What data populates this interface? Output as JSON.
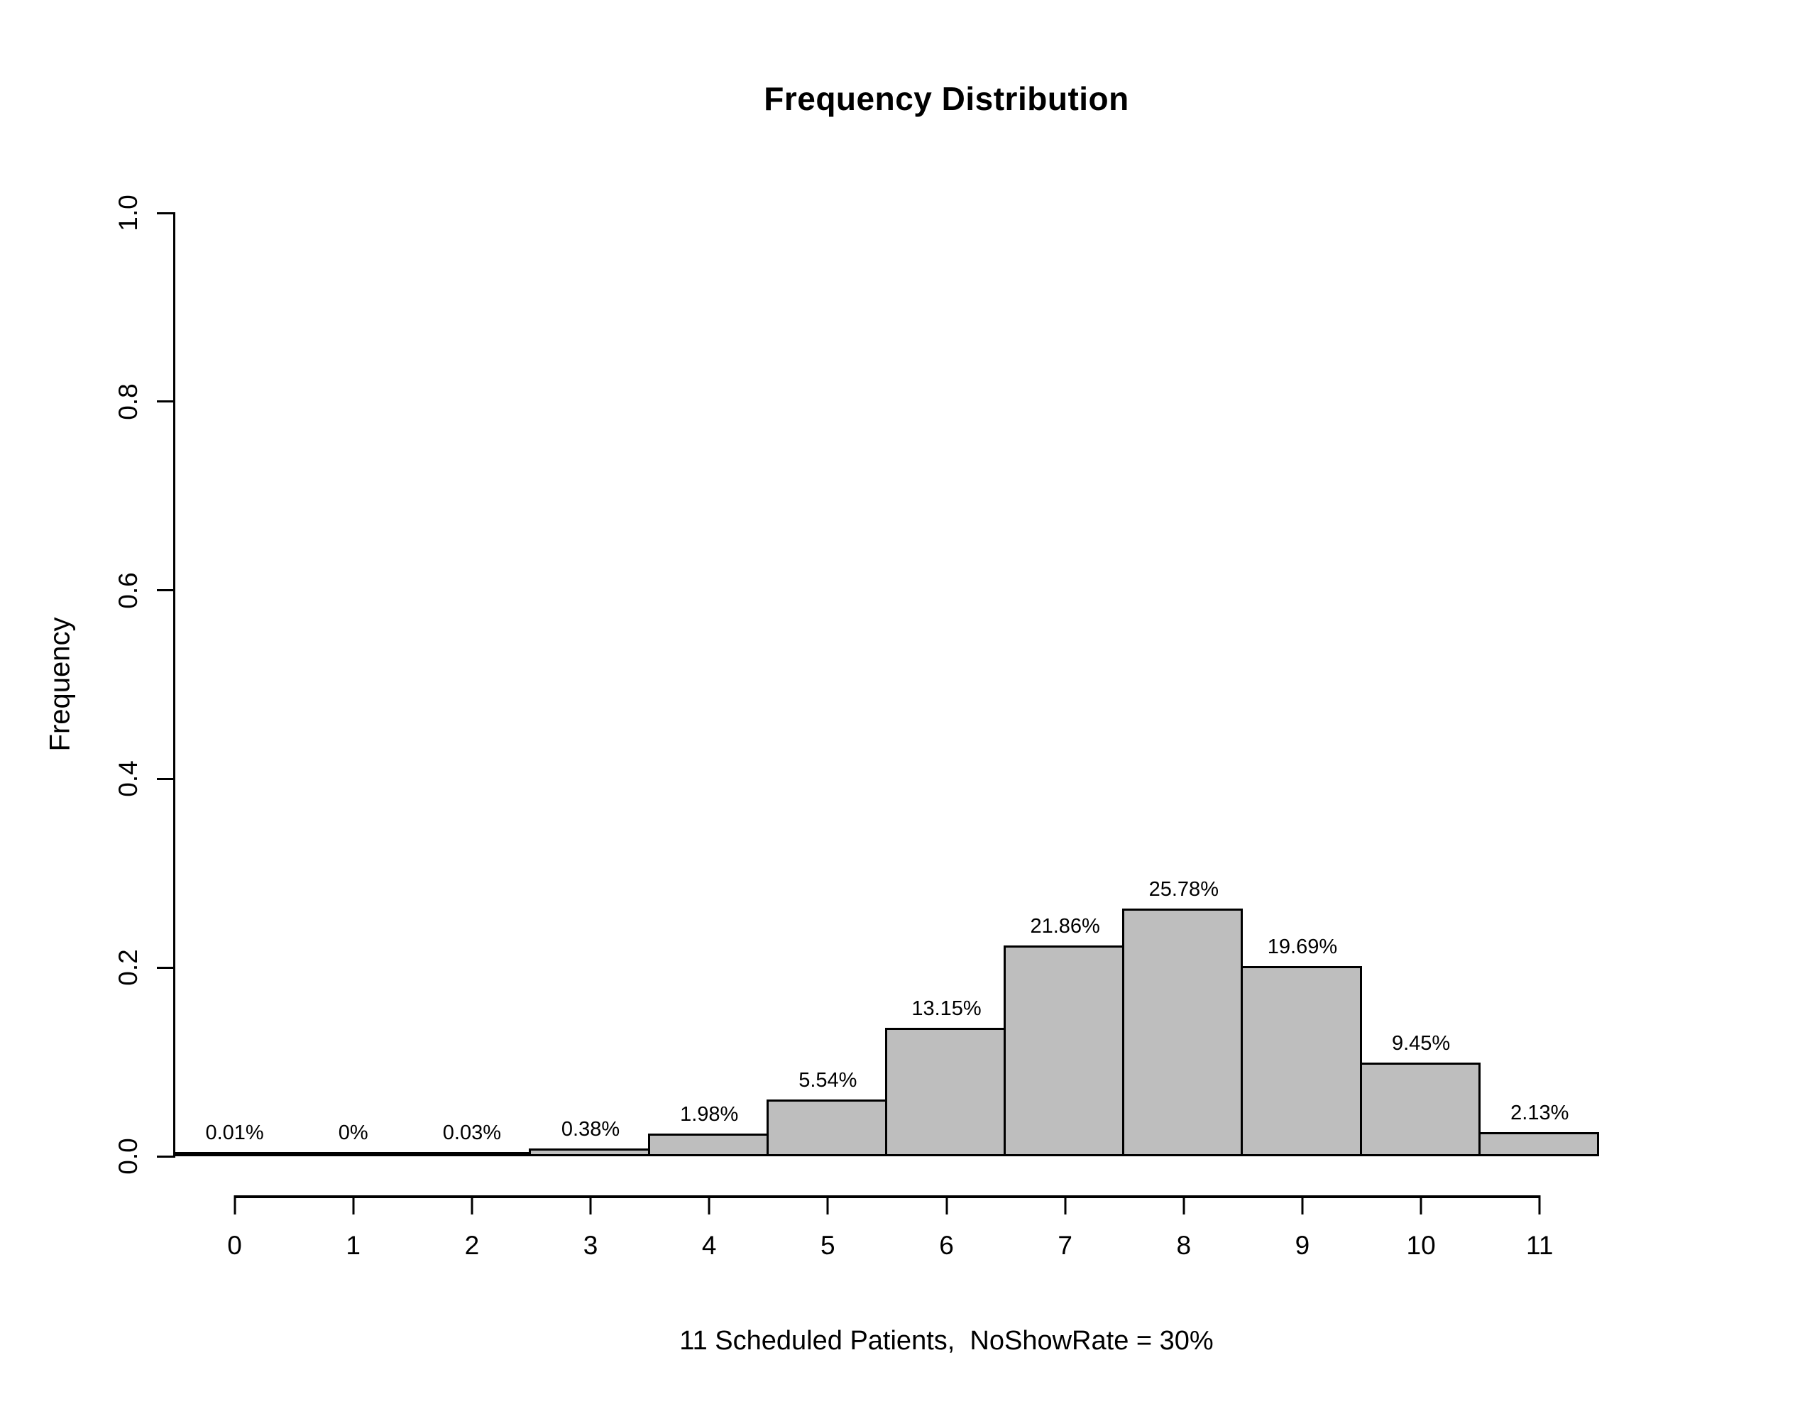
{
  "chart_data": {
    "type": "bar",
    "title": "Frequency Distribution",
    "xlabel": "11 Scheduled Patients,  NoShowRate = 30%",
    "ylabel": "Frequency",
    "categories": [
      0,
      1,
      2,
      3,
      4,
      5,
      6,
      7,
      8,
      9,
      10,
      11
    ],
    "values": [
      0.0001,
      0.0,
      0.0003,
      0.0038,
      0.0198,
      0.0554,
      0.1315,
      0.2186,
      0.2578,
      0.1969,
      0.0945,
      0.0213
    ],
    "bar_labels": [
      "0.01%",
      "0%",
      "0.03%",
      "0.38%",
      "1.98%",
      "5.54%",
      "13.15%",
      "21.86%",
      "25.78%",
      "19.69%",
      "9.45%",
      "2.13%"
    ],
    "ylim": [
      0.0,
      1.0
    ],
    "yticks": [
      0.0,
      0.2,
      0.4,
      0.6,
      0.8,
      1.0
    ],
    "ytick_labels": [
      "0.0",
      "0.2",
      "0.4",
      "0.6",
      "0.8",
      "1.0"
    ],
    "x_range": [
      -0.5,
      12.5
    ],
    "bar_width": 1,
    "grid": false,
    "legend": false,
    "bar_color": "#bebebe",
    "bar_border_color": "#000000",
    "axis_color": "#000000",
    "text_color": "#000000"
  }
}
